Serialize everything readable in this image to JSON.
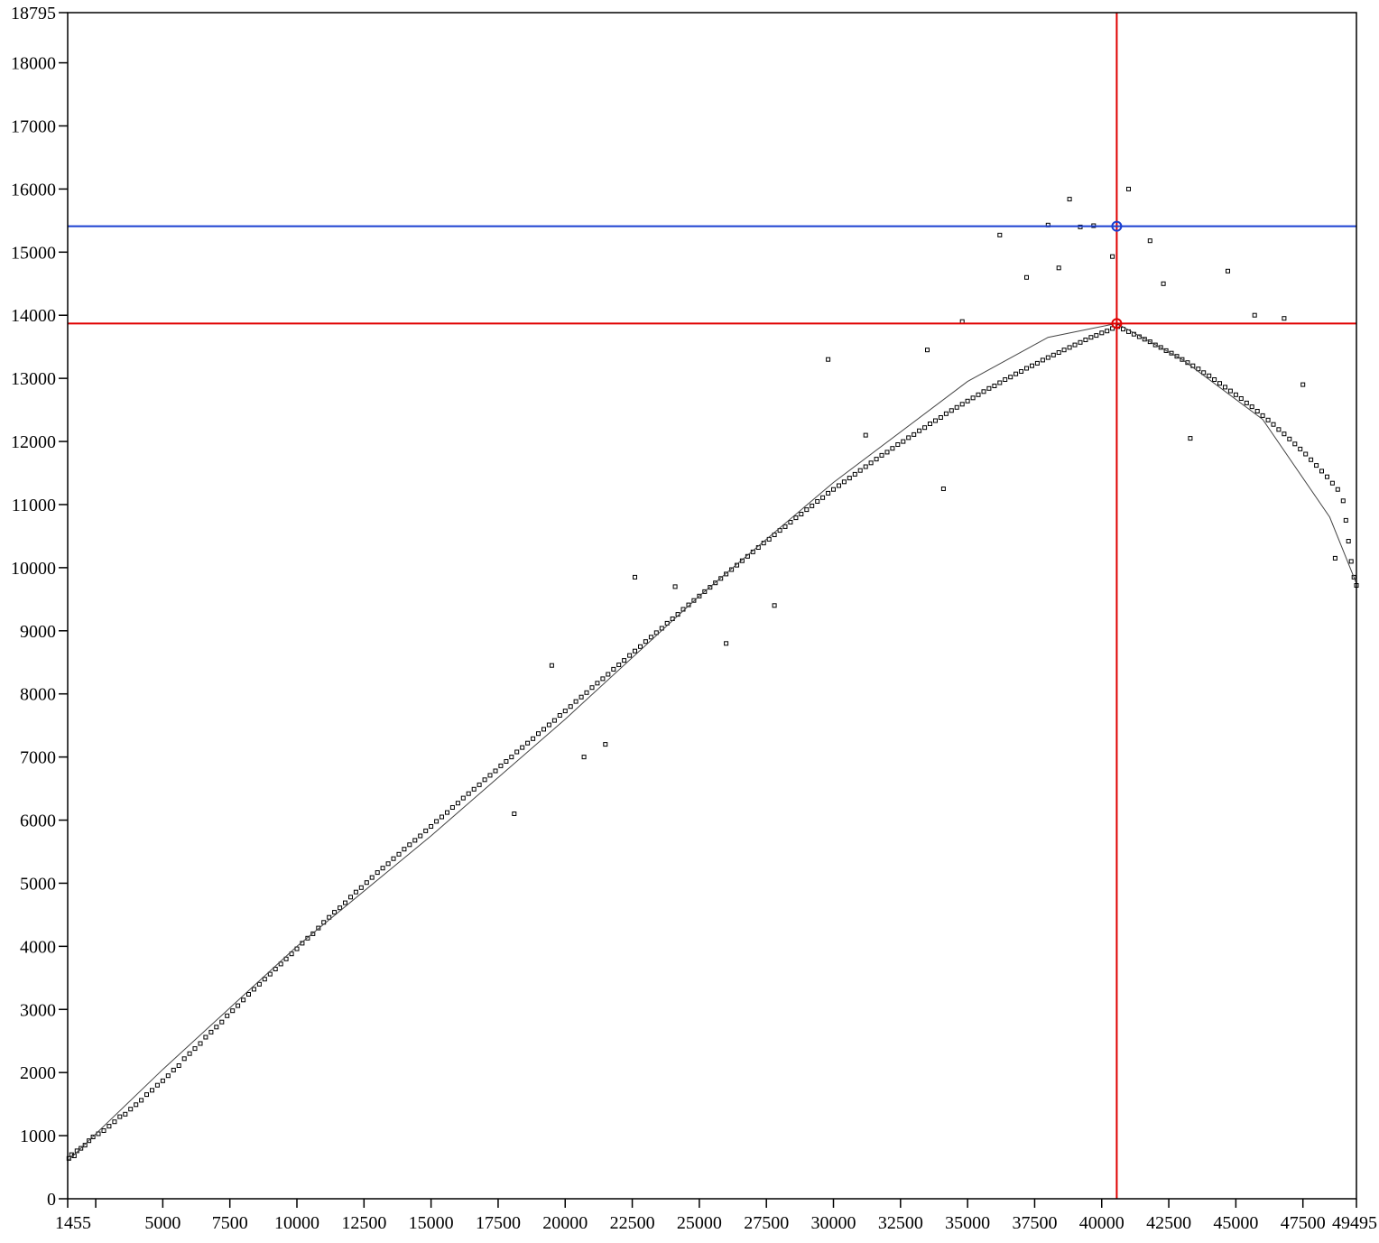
{
  "chart_data": {
    "type": "scatter",
    "title": "",
    "xlabel": "",
    "ylabel": "",
    "xlim": [
      1455,
      49495
    ],
    "ylim": [
      0,
      18795
    ],
    "grid": false,
    "x_ticks": [
      1455,
      2500,
      5000,
      7500,
      10000,
      12500,
      15000,
      17500,
      20000,
      22500,
      25000,
      27500,
      30000,
      32500,
      35000,
      37500,
      40000,
      42500,
      45000,
      47500,
      49495
    ],
    "x_tick_labels": [
      "1455",
      "",
      "5000",
      "7500",
      "10000",
      "12500",
      "15000",
      "17500",
      "20000",
      "22500",
      "25000",
      "27500",
      "30000",
      "32500",
      "35000",
      "37500",
      "40000",
      "42500",
      "45000",
      "47500",
      "49495"
    ],
    "y_ticks": [
      0,
      1000,
      2000,
      3000,
      4000,
      5000,
      6000,
      7000,
      8000,
      9000,
      10000,
      11000,
      12000,
      13000,
      14000,
      15000,
      16000,
      17000,
      18000,
      18795
    ],
    "y_tick_labels": [
      "0",
      "1000",
      "2000",
      "3000",
      "4000",
      "5000",
      "6000",
      "7000",
      "8000",
      "9000",
      "10000",
      "11000",
      "12000",
      "13000",
      "14000",
      "15000",
      "16000",
      "17000",
      "18000",
      "18795"
    ],
    "colors": {
      "points": "#000000",
      "fit": "#444444",
      "crosshair_red": "#e00000",
      "crosshair_blue": "#1a3fd1"
    },
    "crosshair": {
      "x": 40560,
      "y_fit": 13870,
      "y_max": 15410
    },
    "fit_curve": {
      "x": [
        1455,
        5000,
        10000,
        15000,
        20000,
        25000,
        30000,
        35000,
        38000,
        40560,
        43000,
        46000,
        48500,
        49495
      ],
      "y": [
        600,
        2050,
        4000,
        5750,
        7600,
        9550,
        11350,
        12950,
        13650,
        13870,
        13300,
        12350,
        10800,
        9750
      ]
    },
    "series": [
      {
        "values": [
          [
            1500,
            640
          ],
          [
            1600,
            700
          ],
          [
            1700,
            680
          ],
          [
            1800,
            760
          ],
          [
            1950,
            800
          ],
          [
            2100,
            850
          ],
          [
            2250,
            920
          ],
          [
            2400,
            980
          ],
          [
            2600,
            1030
          ],
          [
            2800,
            1080
          ],
          [
            3000,
            1150
          ],
          [
            3200,
            1220
          ],
          [
            3400,
            1300
          ],
          [
            3600,
            1340
          ],
          [
            3800,
            1420
          ],
          [
            4000,
            1490
          ],
          [
            4200,
            1560
          ],
          [
            4400,
            1650
          ],
          [
            4600,
            1720
          ],
          [
            4800,
            1800
          ],
          [
            5000,
            1870
          ],
          [
            5200,
            1950
          ],
          [
            5400,
            2040
          ],
          [
            5600,
            2110
          ],
          [
            5800,
            2220
          ],
          [
            6000,
            2300
          ],
          [
            6200,
            2380
          ],
          [
            6400,
            2460
          ],
          [
            6600,
            2560
          ],
          [
            6800,
            2640
          ],
          [
            7000,
            2720
          ],
          [
            7200,
            2800
          ],
          [
            7400,
            2900
          ],
          [
            7600,
            2980
          ],
          [
            7800,
            3060
          ],
          [
            8000,
            3150
          ],
          [
            8200,
            3240
          ],
          [
            8400,
            3320
          ],
          [
            8600,
            3400
          ],
          [
            8800,
            3480
          ],
          [
            9000,
            3560
          ],
          [
            9200,
            3640
          ],
          [
            9400,
            3720
          ],
          [
            9600,
            3800
          ],
          [
            9800,
            3880
          ],
          [
            10000,
            3960
          ],
          [
            10200,
            4050
          ],
          [
            10400,
            4130
          ],
          [
            10600,
            4200
          ],
          [
            10800,
            4290
          ],
          [
            11000,
            4380
          ],
          [
            11200,
            4460
          ],
          [
            11400,
            4540
          ],
          [
            11600,
            4610
          ],
          [
            11800,
            4690
          ],
          [
            12000,
            4780
          ],
          [
            12200,
            4860
          ],
          [
            12400,
            4930
          ],
          [
            12600,
            5010
          ],
          [
            12800,
            5090
          ],
          [
            13000,
            5170
          ],
          [
            13200,
            5240
          ],
          [
            13400,
            5310
          ],
          [
            13600,
            5390
          ],
          [
            13800,
            5460
          ],
          [
            14000,
            5540
          ],
          [
            14200,
            5610
          ],
          [
            14400,
            5680
          ],
          [
            14600,
            5750
          ],
          [
            14800,
            5830
          ],
          [
            15000,
            5900
          ],
          [
            15200,
            5980
          ],
          [
            15400,
            6050
          ],
          [
            15600,
            6120
          ],
          [
            15800,
            6200
          ],
          [
            16000,
            6270
          ],
          [
            16200,
            6350
          ],
          [
            16400,
            6420
          ],
          [
            16600,
            6490
          ],
          [
            16800,
            6560
          ],
          [
            17000,
            6640
          ],
          [
            17200,
            6710
          ],
          [
            17400,
            6780
          ],
          [
            17600,
            6860
          ],
          [
            17800,
            6930
          ],
          [
            18000,
            7000
          ],
          [
            18200,
            7080
          ],
          [
            18400,
            7150
          ],
          [
            18600,
            7220
          ],
          [
            18800,
            7290
          ],
          [
            19000,
            7370
          ],
          [
            19200,
            7440
          ],
          [
            19400,
            7510
          ],
          [
            19600,
            7580
          ],
          [
            19800,
            7660
          ],
          [
            20000,
            7730
          ],
          [
            20200,
            7800
          ],
          [
            20400,
            7880
          ],
          [
            20600,
            7950
          ],
          [
            20800,
            8020
          ],
          [
            21000,
            8100
          ],
          [
            21200,
            8170
          ],
          [
            21400,
            8240
          ],
          [
            21600,
            8310
          ],
          [
            21800,
            8390
          ],
          [
            22000,
            8460
          ],
          [
            22200,
            8530
          ],
          [
            22400,
            8610
          ],
          [
            22600,
            8680
          ],
          [
            22800,
            8750
          ],
          [
            23000,
            8830
          ],
          [
            23200,
            8900
          ],
          [
            23400,
            8970
          ],
          [
            23600,
            9040
          ],
          [
            23800,
            9120
          ],
          [
            24000,
            9190
          ],
          [
            24200,
            9260
          ],
          [
            24400,
            9340
          ],
          [
            24600,
            9410
          ],
          [
            24800,
            9480
          ],
          [
            25000,
            9550
          ],
          [
            25200,
            9620
          ],
          [
            25400,
            9690
          ],
          [
            25600,
            9760
          ],
          [
            25800,
            9830
          ],
          [
            26000,
            9900
          ],
          [
            26200,
            9970
          ],
          [
            26400,
            10040
          ],
          [
            26600,
            10110
          ],
          [
            26800,
            10180
          ],
          [
            27000,
            10250
          ],
          [
            27200,
            10320
          ],
          [
            27400,
            10390
          ],
          [
            27600,
            10450
          ],
          [
            27800,
            10520
          ],
          [
            28000,
            10590
          ],
          [
            28200,
            10650
          ],
          [
            28400,
            10720
          ],
          [
            28600,
            10790
          ],
          [
            28800,
            10850
          ],
          [
            29000,
            10920
          ],
          [
            29200,
            10980
          ],
          [
            29400,
            11050
          ],
          [
            29600,
            11110
          ],
          [
            29800,
            11180
          ],
          [
            30000,
            11240
          ],
          [
            30200,
            11300
          ],
          [
            30400,
            11360
          ],
          [
            30600,
            11420
          ],
          [
            30800,
            11480
          ],
          [
            31000,
            11540
          ],
          [
            31200,
            11600
          ],
          [
            31400,
            11660
          ],
          [
            31600,
            11720
          ],
          [
            31800,
            11780
          ],
          [
            32000,
            11830
          ],
          [
            32200,
            11890
          ],
          [
            32400,
            11950
          ],
          [
            32600,
            12000
          ],
          [
            32800,
            12060
          ],
          [
            33000,
            12110
          ],
          [
            33200,
            12170
          ],
          [
            33400,
            12220
          ],
          [
            33600,
            12280
          ],
          [
            33800,
            12330
          ],
          [
            34000,
            12380
          ],
          [
            34200,
            12440
          ],
          [
            34400,
            12490
          ],
          [
            34600,
            12540
          ],
          [
            34800,
            12590
          ],
          [
            35000,
            12640
          ],
          [
            35200,
            12690
          ],
          [
            35400,
            12740
          ],
          [
            35600,
            12790
          ],
          [
            35800,
            12840
          ],
          [
            36000,
            12880
          ],
          [
            36200,
            12930
          ],
          [
            36400,
            12980
          ],
          [
            36600,
            13020
          ],
          [
            36800,
            13070
          ],
          [
            37000,
            13110
          ],
          [
            37200,
            13160
          ],
          [
            37400,
            13200
          ],
          [
            37600,
            13240
          ],
          [
            37800,
            13290
          ],
          [
            38000,
            13330
          ],
          [
            38200,
            13370
          ],
          [
            38400,
            13410
          ],
          [
            38600,
            13450
          ],
          [
            38800,
            13490
          ],
          [
            39000,
            13530
          ],
          [
            39200,
            13570
          ],
          [
            39400,
            13610
          ],
          [
            39600,
            13650
          ],
          [
            39800,
            13680
          ],
          [
            40000,
            13720
          ],
          [
            40200,
            13750
          ],
          [
            40400,
            13790
          ],
          [
            40600,
            13820
          ],
          [
            40800,
            13780
          ],
          [
            41000,
            13740
          ],
          [
            41200,
            13700
          ],
          [
            41400,
            13660
          ],
          [
            41600,
            13620
          ],
          [
            41800,
            13580
          ],
          [
            42000,
            13530
          ],
          [
            42200,
            13490
          ],
          [
            42400,
            13440
          ],
          [
            42600,
            13400
          ],
          [
            42800,
            13350
          ],
          [
            43000,
            13300
          ],
          [
            43200,
            13250
          ],
          [
            43400,
            13200
          ],
          [
            43600,
            13150
          ],
          [
            43800,
            13090
          ],
          [
            44000,
            13040
          ],
          [
            44200,
            12980
          ],
          [
            44400,
            12920
          ],
          [
            44600,
            12860
          ],
          [
            44800,
            12800
          ],
          [
            45000,
            12740
          ],
          [
            45200,
            12680
          ],
          [
            45400,
            12610
          ],
          [
            45600,
            12550
          ],
          [
            45800,
            12480
          ],
          [
            46000,
            12410
          ],
          [
            46200,
            12340
          ],
          [
            46400,
            12270
          ],
          [
            46600,
            12190
          ],
          [
            46800,
            12120
          ],
          [
            47000,
            12040
          ],
          [
            47200,
            11960
          ],
          [
            47400,
            11880
          ],
          [
            47600,
            11800
          ],
          [
            47800,
            11710
          ],
          [
            48000,
            11620
          ],
          [
            48200,
            11530
          ],
          [
            48400,
            11440
          ],
          [
            48600,
            11340
          ],
          [
            48800,
            11240
          ],
          [
            49000,
            11060
          ],
          [
            49100,
            10750
          ],
          [
            49200,
            10420
          ],
          [
            49300,
            10100
          ],
          [
            49400,
            9850
          ],
          [
            49495,
            9720
          ],
          [
            36200,
            15270
          ],
          [
            38000,
            15430
          ],
          [
            38800,
            15840
          ],
          [
            39200,
            15400
          ],
          [
            41000,
            16000
          ],
          [
            41800,
            15180
          ],
          [
            39700,
            15420
          ],
          [
            40400,
            14930
          ],
          [
            38400,
            14750
          ],
          [
            37200,
            14600
          ],
          [
            33500,
            13450
          ],
          [
            34800,
            13900
          ],
          [
            31200,
            12100
          ],
          [
            34100,
            11250
          ],
          [
            29800,
            13300
          ],
          [
            27800,
            9400
          ],
          [
            26000,
            8800
          ],
          [
            21500,
            7200
          ],
          [
            20700,
            7000
          ],
          [
            18100,
            6100
          ],
          [
            19500,
            8450
          ],
          [
            22600,
            9850
          ],
          [
            24100,
            9700
          ],
          [
            43300,
            12050
          ],
          [
            44700,
            14700
          ],
          [
            45700,
            14000
          ],
          [
            46800,
            13950
          ],
          [
            47500,
            12900
          ],
          [
            48700,
            10150
          ],
          [
            42300,
            14500
          ]
        ]
      }
    ]
  }
}
